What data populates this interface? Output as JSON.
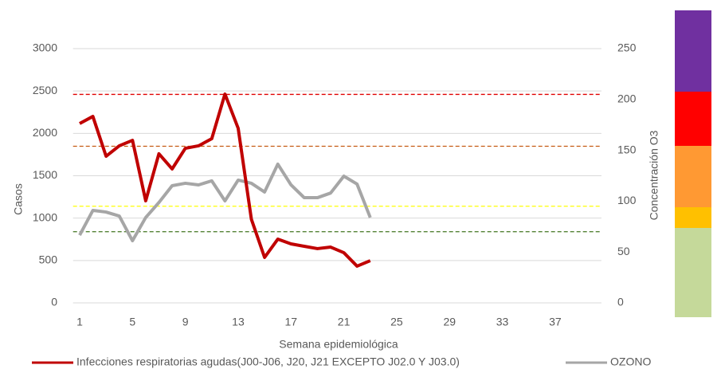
{
  "chart_data": {
    "type": "line",
    "x_label": "Semana epidemiológica",
    "y_label": "Casos",
    "y2_label": "Concentración O3",
    "x": [
      1,
      2,
      3,
      4,
      5,
      6,
      7,
      8,
      9,
      10,
      11,
      12,
      13,
      14,
      15,
      16,
      17,
      18,
      19,
      20,
      21,
      22,
      23
    ],
    "xlim": [
      0.5,
      40.5
    ],
    "xticks": [
      1,
      5,
      9,
      13,
      17,
      21,
      25,
      29,
      33,
      37
    ],
    "ylim": [
      0,
      3000
    ],
    "yticks": [
      0,
      500,
      1000,
      1500,
      2000,
      2500,
      3000
    ],
    "y2lim": [
      0,
      250
    ],
    "y2ticks": [
      0,
      50,
      100,
      150,
      200,
      250
    ],
    "grid": true,
    "legend": "bottom",
    "series": [
      {
        "name": "Infecciones respiratorias agudas(J00-J06, J20, J21 EXCEPTO J02.0 Y J03.0)",
        "color": "#c00000",
        "values": [
          2116,
          2200,
          1730,
          1853,
          1918,
          1204,
          1759,
          1580,
          1824,
          1853,
          1937,
          2464,
          2060,
          987,
          536,
          752,
          696,
          668,
          640,
          658,
          592,
          433,
          498
        ]
      },
      {
        "name": "OZONO",
        "color": "#a6a6a6",
        "axis": "y2",
        "values": [
          66.6,
          90.9,
          89.3,
          85.4,
          61.1,
          83.9,
          98.7,
          115.2,
          117.6,
          116,
          120,
          100.3,
          120.7,
          117.6,
          109,
          136.4,
          116,
          103.4,
          103.4,
          108,
          124.6,
          116.8,
          83.9
        ]
      }
    ],
    "reference_lines": [
      {
        "value": 205,
        "color": "#e00000",
        "axis": "y2"
      },
      {
        "value": 154,
        "color": "#c55a11",
        "axis": "y2"
      },
      {
        "value": 95,
        "color": "#ffff00",
        "axis": "y2"
      },
      {
        "value": 70,
        "color": "#548235",
        "axis": "y2"
      }
    ]
  }
}
